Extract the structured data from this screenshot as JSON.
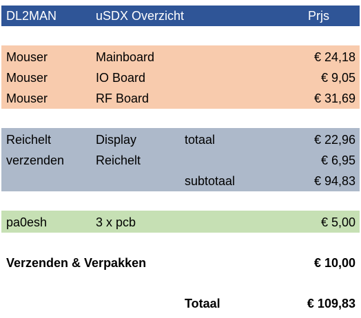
{
  "header": {
    "col1": "DL2MAN",
    "col2": "uSDX Overzicht",
    "col4": "Prjs",
    "background": "#2f5597",
    "text_color": "#ffffff"
  },
  "groups": [
    {
      "name": "mouser",
      "color": "#f8cbad",
      "rows": [
        {
          "c1": "Mouser",
          "c2": "Mainboard",
          "c3": "",
          "c4": "€ 24,18"
        },
        {
          "c1": "Mouser",
          "c2": "IO Board",
          "c3": "",
          "c4": "€ 9,05"
        },
        {
          "c1": "Mouser",
          "c2": "RF Board",
          "c3": "",
          "c4": "€ 31,69"
        }
      ]
    },
    {
      "name": "reichelt",
      "color": "#adb9ca",
      "rows": [
        {
          "c1": "Reichelt",
          "c2": "Display",
          "c3": "totaal",
          "c4": "€ 22,96"
        },
        {
          "c1": "verzenden",
          "c2": "Reichelt",
          "c3": "",
          "c4": "€ 6,95"
        },
        {
          "c1": "",
          "c2": "",
          "c3": "subtotaal",
          "c4": "€ 94,83"
        }
      ]
    },
    {
      "name": "pcb",
      "color": "#c6e0b4",
      "rows": [
        {
          "c1": "pa0esh",
          "c2": "3 x pcb",
          "c3": "",
          "c4": "€ 5,00"
        }
      ]
    }
  ],
  "shipping": {
    "label": "Verzenden & Verpakken",
    "amount": "€ 10,00"
  },
  "total": {
    "label": "Totaal",
    "amount": "€ 109,83"
  }
}
